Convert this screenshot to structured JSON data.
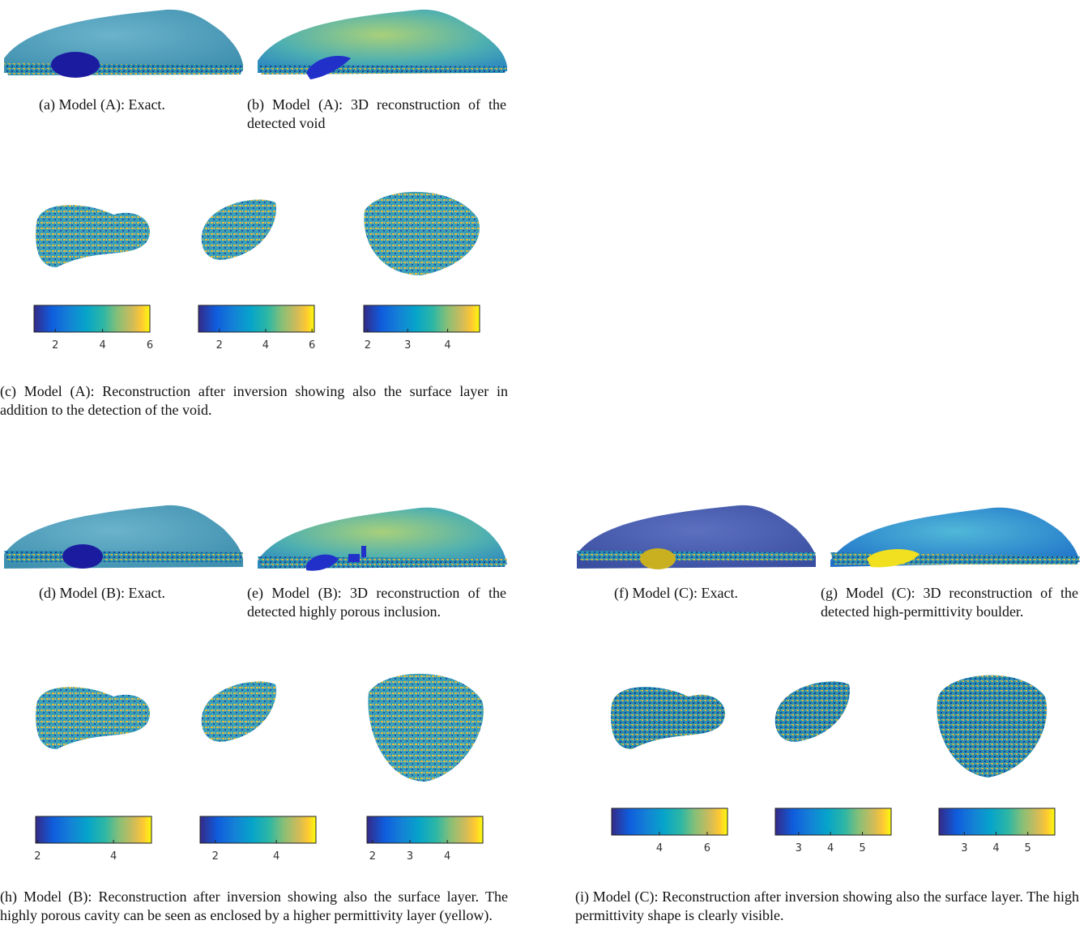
{
  "captions": [
    "(a) Model (A): Exact.",
    "(b) Model (A): 3D reconstruction of the detected void",
    "(c) Model (A): Reconstruction after inversion showing also the surface layer in addition to the detection of the void.",
    "(d) Model (B): Exact.",
    "(e) Model (B): 3D reconstruction of the detected highly porous inclusion.",
    "(f) Model (C): Exact.",
    "(g) Model (C): 3D reconstruction of the detected high-permittivity boulder.",
    "(h) Model (B): Reconstruction after inversion showing also the surface layer. The highly porous cavity can be seen as enclosed by a higher permittivity layer (yellow).",
    "(i) Model (C): Reconstruction after inversion showing also the surface layer. The high permittivity shape is clearly visible."
  ],
  "colorbars": [
    {
      "lim": [
        1.1,
        6.0
      ],
      "ticks": [
        2,
        4,
        6
      ]
    },
    {
      "lim": [
        1.1,
        6.1
      ],
      "ticks": [
        2,
        4,
        6
      ]
    },
    {
      "lim": [
        1.9,
        4.8
      ],
      "ticks": [
        2,
        3,
        4
      ]
    },
    {
      "lim": [
        1.95,
        5.0
      ],
      "ticks": [
        2,
        4
      ]
    },
    {
      "lim": [
        1.5,
        5.3
      ],
      "ticks": [
        2,
        4
      ]
    },
    {
      "lim": [
        1.85,
        4.95
      ],
      "ticks": [
        2,
        3,
        4
      ]
    },
    {
      "lim": [
        2.0,
        6.85
      ],
      "ticks": [
        4,
        6
      ]
    },
    {
      "lim": [
        2.27,
        5.9
      ],
      "ticks": [
        3,
        4,
        5
      ]
    },
    {
      "lim": [
        2.2,
        5.85
      ],
      "ticks": [
        3,
        4,
        5
      ]
    }
  ]
}
